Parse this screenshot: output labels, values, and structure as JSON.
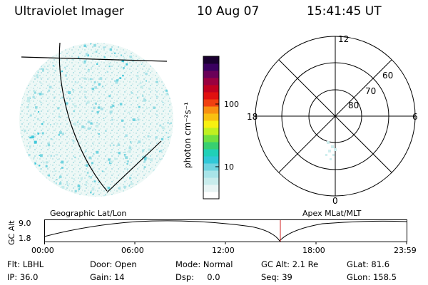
{
  "header": {
    "instrument": "Ultraviolet Imager",
    "date": "10 Aug 07",
    "time": "15:41:45 UT"
  },
  "colorbar": {
    "unit_label": "photon cm⁻²s⁻¹",
    "ticks": [
      "100",
      "10"
    ],
    "scale": "log",
    "colors": [
      "#ffffff",
      "#e8f4f4",
      "#c8ecec",
      "#a8e4e8",
      "#70d4e0",
      "#30c8d8",
      "#20d0b8",
      "#38d070",
      "#70e040",
      "#c0f020",
      "#f8f010",
      "#f8c010",
      "#f89010",
      "#f04010",
      "#e01010",
      "#c00020",
      "#9a0040",
      "#6a0058",
      "#3a0060",
      "#1a0030"
    ]
  },
  "image_panel": {
    "captions": {
      "left": "Geographic Lat/Lon",
      "right": "Apex  MLat/MLT"
    },
    "dominant_color": "#9fe0e6"
  },
  "polar_plot": {
    "mlt_labels": {
      "top": "12",
      "left": "18",
      "right": "6",
      "bottom": "0"
    },
    "lat_rings": [
      "60",
      "70",
      "80"
    ]
  },
  "altitude_plot": {
    "ylabel": "GC Alt",
    "yticks": [
      "9.0",
      "1.8"
    ],
    "xticks": [
      "00:00",
      "06:00",
      "12:00",
      "18:00",
      "23:59"
    ],
    "current_marker_color": "#d02020"
  },
  "status": {
    "filter": "Flt: LBHL",
    "door": "Door: Open",
    "mode": "Mode: Normal",
    "gc_alt": "GC Alt: 2.1 Re",
    "glat": "GLat:  81.6",
    "ip": "IP: 36.0",
    "gain": "Gain: 14",
    "dsp": "Dsp:     0.0",
    "seq": "Seq: 39",
    "glon": "GLon: 158.5"
  }
}
